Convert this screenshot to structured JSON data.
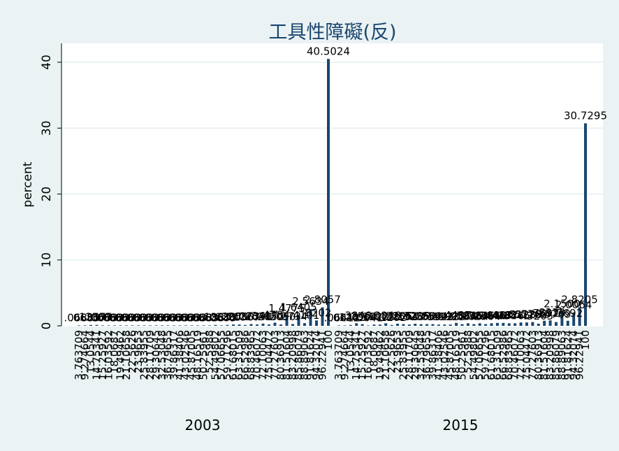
{
  "chart_data": {
    "type": "bar",
    "title": "工具性障礙(反)",
    "ylabel": "percent",
    "ylim": [
      0,
      42
    ],
    "yticks": [
      0,
      10,
      20,
      30,
      40
    ],
    "grid": true,
    "legend": "none",
    "colors": {
      "background": "#eaf2f3",
      "plot": "#ffffff",
      "bar": "#1a476f",
      "grid": "#eaf2f3",
      "title": "#1a476f"
    },
    "groups": [
      {
        "name": "2003",
        "categories": [
          "3.763709",
          "9.274664",
          "13.0544",
          "14.75341",
          "15.25927",
          "16.03592",
          "18.0687",
          "19.49462",
          "21.10658",
          "22.5626",
          "23.9653",
          "25.83955",
          "28.11709",
          "29.30645",
          "32.53048",
          "36.79655",
          "39.86317",
          "41.38406",
          "43.02546",
          "45.87005",
          "48.16519",
          "50.25961",
          "52.5988",
          "54.49802",
          "57.06655",
          "59.71296",
          "61.68015",
          "63.31509",
          "66.52986",
          "68.83965",
          "70.46072",
          "72.10063",
          "75.04472",
          "77.27603",
          "80.36913",
          "81.51604",
          "83.20998",
          "85.86079",
          "88.89063",
          "91.81624",
          "94.32074",
          "96.22941",
          "100"
        ],
        "values": [
          0.0683,
          0.0683,
          0.1367,
          0.1367,
          0.0683,
          0.0683,
          0.0683,
          0.0683,
          0.0683,
          0.0683,
          0.0683,
          0.0683,
          0.0683,
          0.0683,
          0.0683,
          0.0683,
          0.0683,
          0.0683,
          0.0683,
          0.0683,
          0.0683,
          0.0683,
          0.0683,
          0.1367,
          0.0683,
          0.1367,
          0.205,
          0.205,
          0.1367,
          0.2734,
          0.205,
          0.3417,
          0.205,
          0.4784,
          0.205,
          1.4775,
          0.2734,
          1.6405,
          0.4101,
          2.5634,
          0.8202,
          2.8057,
          40.5024
        ],
        "labels": [
          ".0683",
          ".0683",
          ".1367",
          ".1367",
          ".0683",
          ".0683",
          ".0683",
          ".0683",
          ".0683",
          ".0683",
          ".0683",
          ".0683",
          ".0683",
          ".0683",
          ".0683",
          ".0683",
          ".0683",
          ".0683",
          ".0683",
          ".0683",
          ".0683",
          ".0683",
          ".0683",
          ".1367",
          ".0683",
          ".1367",
          ".2050",
          ".2050",
          ".1367",
          ".2734",
          ".2050",
          ".3417",
          ".2050",
          ".4784",
          ".2050",
          "1.4775",
          ".2734",
          "1.6405",
          ".4101",
          "2.5634",
          ".8202",
          "2.8057",
          "40.5024"
        ]
      },
      {
        "name": "2015",
        "categories": [
          "3.763709",
          "9.274664",
          "13.0544",
          "14.75341",
          "15.25927",
          "16.03592",
          "18.0687",
          "19.49462",
          "21.10658",
          "22.5626",
          "23.9653",
          "25.83955",
          "28.11709",
          "29.30645",
          "32.53048",
          "36.79655",
          "39.86317",
          "41.38406",
          "43.02546",
          "45.87005",
          "48.16519",
          "50.25961",
          "52.5988",
          "54.49802",
          "57.06655",
          "59.71296",
          "61.68015",
          "63.31509",
          "66.52986",
          "68.83965",
          "70.46072",
          "72.10063",
          "75.04472",
          "77.27603",
          "80.36913",
          "81.51604",
          "83.20998",
          "85.86079",
          "88.89063",
          "91.81624",
          "94.32074",
          "96.22941",
          "100"
        ],
        "values": [
          0.0641,
          0.0641,
          0.1282,
          0.3846,
          0.2564,
          0.0641,
          0.1923,
          0.1923,
          0.3846,
          0.1282,
          0.3205,
          0.2564,
          0.1923,
          0.3205,
          0.2564,
          0.2564,
          0.2564,
          0.1923,
          0.1923,
          0.1923,
          0.4487,
          0.2564,
          0.3846,
          0.2564,
          0.3846,
          0.2564,
          0.3846,
          0.4487,
          0.4487,
          0.3846,
          0.3846,
          0.5128,
          0.5128,
          0.5769,
          0.3205,
          0.7692,
          0.8333,
          0.5769,
          2.15,
          0.7692,
          2.0064,
          2.8205,
          30.7295
        ],
        "labels": [
          ".0641",
          ".0641",
          ".1282",
          ".3846",
          ".2564",
          ".0641",
          ".1923",
          ".1923",
          ".3846",
          ".1282",
          ".3205",
          ".2564",
          ".1923",
          ".3205",
          ".2564",
          ".2564",
          ".2564",
          ".1923",
          ".1923",
          ".1923",
          ".4487",
          ".2564",
          ".3846",
          ".2564",
          ".3846",
          ".2564",
          ".3846",
          ".4487",
          ".4487",
          ".3846",
          ".3846",
          ".5128",
          ".5128",
          ".5769",
          ".3205",
          ".7692",
          ".8333",
          ".5769",
          "2.1500",
          ".7692",
          "2.0064",
          "2.8205",
          "30.7295"
        ]
      }
    ]
  }
}
